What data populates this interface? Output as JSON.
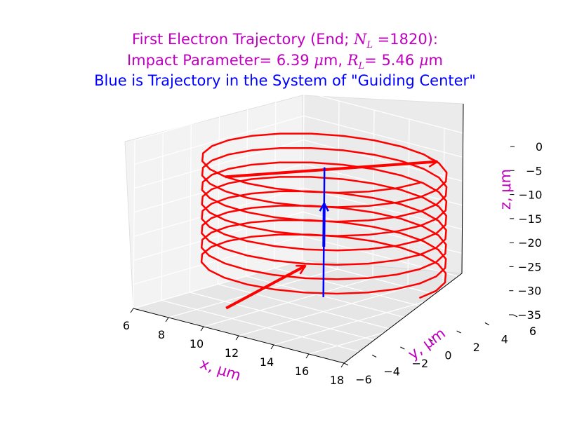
{
  "chart_data": {
    "type": "line3d",
    "title_lines": {
      "line1_prefix": "First Electron Trajectory (End; ",
      "line1_nl": "N",
      "line1_nl_sub": "L",
      "line1_suffix": " =1820):",
      "line2_prefix": "Impact Parameter= 6.39 ",
      "line2_mu1": "μ",
      "line2_mid": "m, ",
      "line2_rl": "R",
      "line2_rl_sub": "L",
      "line2_eq": "= 5.46 ",
      "line2_mu2": "μ",
      "line2_end": "m",
      "line3": "Blue is Trajectory in the System of \"Guiding Center\""
    },
    "xlabel": "x, μm",
    "ylabel": "y, μm",
    "zlabel": "z, μm",
    "x_ticks": [
      "6",
      "8",
      "10",
      "12",
      "14",
      "16",
      "18"
    ],
    "y_ticks": [
      "−6",
      "−4",
      "−2",
      "0",
      "2",
      "4",
      "6"
    ],
    "z_ticks": [
      "0",
      "−5",
      "−10",
      "−15",
      "−20",
      "−25",
      "−30",
      "−35"
    ],
    "xlim": [
      6,
      18
    ],
    "ylim": [
      -6,
      6
    ],
    "zlim": [
      -35,
      0
    ],
    "grid": true,
    "series": [
      {
        "kind": "helix",
        "color": "#ff0000",
        "center": [
          12,
          0
        ],
        "radius": 5.46,
        "z_start": -27,
        "z_end": -3,
        "turns": 8
      },
      {
        "kind": "guiding-center",
        "color": "#0000ff",
        "x": 12,
        "y": 0,
        "z_start": -32,
        "z_end": -5
      }
    ]
  }
}
